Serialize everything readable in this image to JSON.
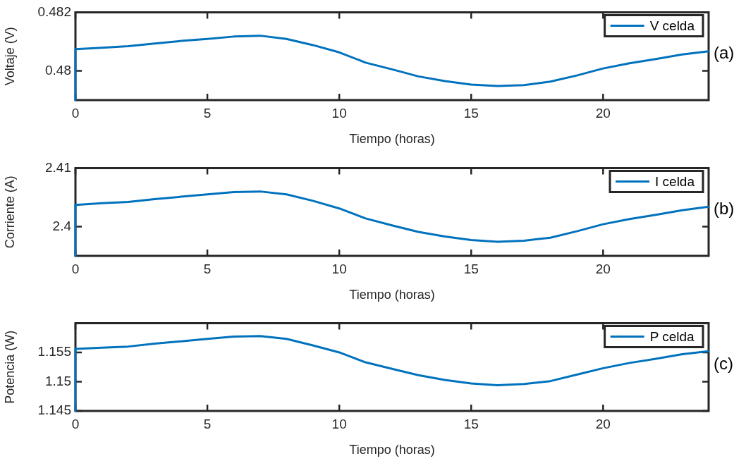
{
  "chart_data": [
    {
      "type": "line",
      "xlabel": "Tiempo (horas)",
      "ylabel": "Voltaje (V)",
      "annotations": [
        "(a)"
      ],
      "legend": "top right",
      "grid": false,
      "xlim": [
        0,
        24
      ],
      "xticks": [
        0,
        5,
        10,
        15,
        20
      ],
      "ylim": [
        0.479,
        0.482
      ],
      "yticks": [
        0.48,
        0.482
      ],
      "series": [
        {
          "name": "V celda",
          "color": "#0072bd",
          "x": [
            0,
            0,
            1,
            2,
            3,
            4,
            5,
            6,
            7,
            8,
            9,
            10,
            11,
            12,
            13,
            14,
            15,
            16,
            17,
            18,
            19,
            20,
            21,
            22,
            23,
            24
          ],
          "values": [
            0.479,
            0.48074,
            0.48079,
            0.48084,
            0.48093,
            0.48102,
            0.48109,
            0.48117,
            0.4812,
            0.48109,
            0.48088,
            0.48063,
            0.48028,
            0.48005,
            0.47981,
            0.47965,
            0.47953,
            0.47948,
            0.47951,
            0.47963,
            0.47984,
            0.48008,
            0.48026,
            0.4804,
            0.48056,
            0.48067
          ]
        }
      ]
    },
    {
      "type": "line",
      "xlabel": "Tiempo (horas)",
      "ylabel": "Corriente (A)",
      "annotations": [
        "(b)"
      ],
      "legend": "top right",
      "grid": false,
      "xlim": [
        0,
        24
      ],
      "xticks": [
        0,
        5,
        10,
        15,
        20
      ],
      "ylim": [
        2.395,
        2.41
      ],
      "yticks": [
        2.4,
        2.41
      ],
      "series": [
        {
          "name": "I celda",
          "color": "#0072bd",
          "x": [
            0,
            0,
            1,
            2,
            3,
            4,
            5,
            6,
            7,
            8,
            9,
            10,
            11,
            12,
            13,
            14,
            15,
            16,
            17,
            18,
            19,
            20,
            21,
            22,
            23,
            24
          ],
          "values": [
            2.395,
            2.4037,
            2.404,
            2.4042,
            2.4047,
            2.4051,
            2.4055,
            2.4059,
            2.406,
            2.4055,
            2.4044,
            2.4031,
            2.4014,
            2.4002,
            2.3991,
            2.3983,
            2.3977,
            2.3974,
            2.3976,
            2.3981,
            2.3992,
            2.4004,
            2.4013,
            2.402,
            2.4028,
            2.4034
          ]
        }
      ]
    },
    {
      "type": "line",
      "xlabel": "Tiempo (horas)",
      "ylabel": "Potencia (W)",
      "annotations": [
        "(c)"
      ],
      "legend": "top right",
      "grid": false,
      "xlim": [
        0,
        24
      ],
      "xticks": [
        0,
        5,
        10,
        15,
        20
      ],
      "ylim": [
        1.145,
        1.16
      ],
      "yticks": [
        1.145,
        1.15,
        1.155
      ],
      "series": [
        {
          "name": "P celda",
          "color": "#0072bd",
          "x": [
            0,
            0,
            1,
            2,
            3,
            4,
            5,
            6,
            7,
            8,
            9,
            10,
            11,
            12,
            13,
            14,
            15,
            16,
            17,
            18,
            19,
            20,
            21,
            22,
            23,
            24
          ],
          "values": [
            1.145,
            1.1556,
            1.1558,
            1.156,
            1.1565,
            1.1569,
            1.1573,
            1.1577,
            1.1578,
            1.1573,
            1.1562,
            1.155,
            1.1533,
            1.1522,
            1.1511,
            1.1503,
            1.1497,
            1.1494,
            1.1496,
            1.1501,
            1.1512,
            1.1523,
            1.1532,
            1.1539,
            1.1547,
            1.1552
          ]
        }
      ]
    }
  ]
}
